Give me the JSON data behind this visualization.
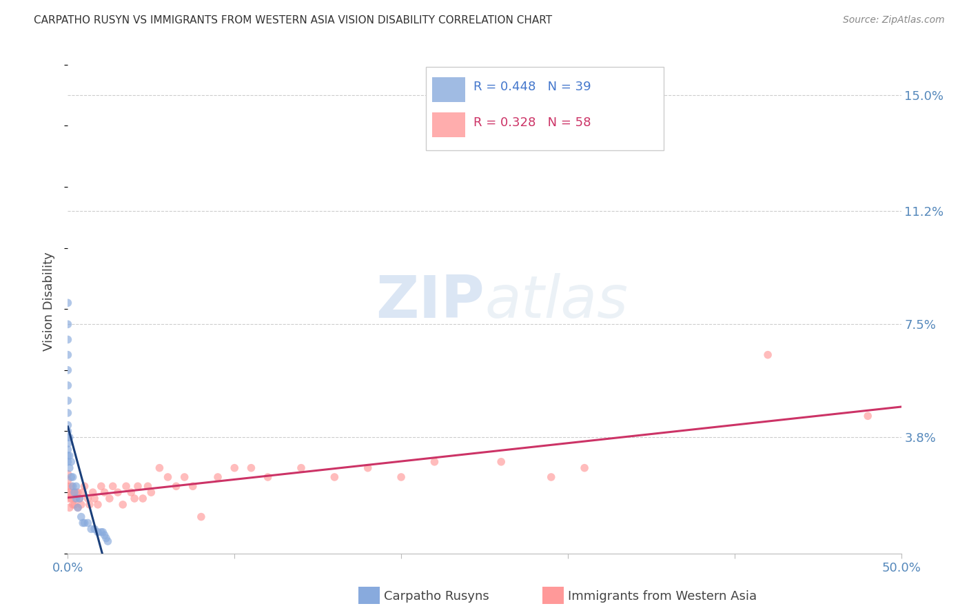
{
  "title": "CARPATHO RUSYN VS IMMIGRANTS FROM WESTERN ASIA VISION DISABILITY CORRELATION CHART",
  "source": "Source: ZipAtlas.com",
  "ylabel": "Vision Disability",
  "xlim": [
    0.0,
    0.5
  ],
  "ylim": [
    0.0,
    0.165
  ],
  "xticks": [
    0.0,
    0.1,
    0.2,
    0.3,
    0.4,
    0.5
  ],
  "xticklabels": [
    "0.0%",
    "",
    "",
    "",
    "",
    "50.0%"
  ],
  "yticks_right": [
    0.038,
    0.075,
    0.112,
    0.15
  ],
  "yticks_right_labels": [
    "3.8%",
    "7.5%",
    "11.2%",
    "15.0%"
  ],
  "legend_blue_R": "0.448",
  "legend_blue_N": "39",
  "legend_pink_R": "0.328",
  "legend_pink_N": "58",
  "watermark": "ZIPatlas",
  "blue_color": "#88AADD",
  "pink_color": "#FF9999",
  "blue_line_color": "#1a3f7a",
  "pink_line_color": "#CC3366",
  "blue_x": [
    0.0,
    0.0,
    0.0,
    0.0,
    0.0,
    0.0,
    0.0,
    0.0,
    0.0,
    0.0,
    0.0,
    0.0,
    0.0,
    0.0,
    0.0,
    0.001,
    0.001,
    0.001,
    0.002,
    0.002,
    0.003,
    0.003,
    0.004,
    0.005,
    0.005,
    0.006,
    0.007,
    0.008,
    0.009,
    0.01,
    0.012,
    0.014,
    0.016,
    0.018,
    0.02,
    0.021,
    0.022,
    0.023,
    0.024
  ],
  "blue_y": [
    0.082,
    0.075,
    0.07,
    0.065,
    0.06,
    0.055,
    0.05,
    0.046,
    0.042,
    0.04,
    0.038,
    0.036,
    0.034,
    0.032,
    0.03,
    0.038,
    0.032,
    0.028,
    0.03,
    0.025,
    0.025,
    0.022,
    0.02,
    0.022,
    0.018,
    0.015,
    0.018,
    0.012,
    0.01,
    0.01,
    0.01,
    0.008,
    0.008,
    0.007,
    0.007,
    0.007,
    0.006,
    0.005,
    0.004
  ],
  "pink_x": [
    0.0,
    0.0,
    0.0,
    0.0,
    0.0,
    0.001,
    0.001,
    0.002,
    0.002,
    0.003,
    0.003,
    0.004,
    0.004,
    0.005,
    0.006,
    0.006,
    0.007,
    0.008,
    0.009,
    0.01,
    0.012,
    0.013,
    0.015,
    0.016,
    0.018,
    0.02,
    0.022,
    0.025,
    0.027,
    0.03,
    0.033,
    0.035,
    0.038,
    0.04,
    0.042,
    0.045,
    0.048,
    0.05,
    0.055,
    0.06,
    0.065,
    0.07,
    0.075,
    0.08,
    0.09,
    0.1,
    0.11,
    0.12,
    0.14,
    0.16,
    0.18,
    0.2,
    0.22,
    0.26,
    0.29,
    0.31,
    0.42,
    0.48
  ],
  "pink_y": [
    0.018,
    0.02,
    0.022,
    0.024,
    0.026,
    0.015,
    0.02,
    0.018,
    0.022,
    0.016,
    0.02,
    0.018,
    0.016,
    0.02,
    0.015,
    0.02,
    0.018,
    0.016,
    0.02,
    0.022,
    0.018,
    0.016,
    0.02,
    0.018,
    0.016,
    0.022,
    0.02,
    0.018,
    0.022,
    0.02,
    0.016,
    0.022,
    0.02,
    0.018,
    0.022,
    0.018,
    0.022,
    0.02,
    0.028,
    0.025,
    0.022,
    0.025,
    0.022,
    0.012,
    0.025,
    0.028,
    0.028,
    0.025,
    0.028,
    0.025,
    0.028,
    0.025,
    0.03,
    0.03,
    0.025,
    0.028,
    0.065,
    0.045
  ],
  "background_color": "#ffffff",
  "grid_color": "#cccccc"
}
